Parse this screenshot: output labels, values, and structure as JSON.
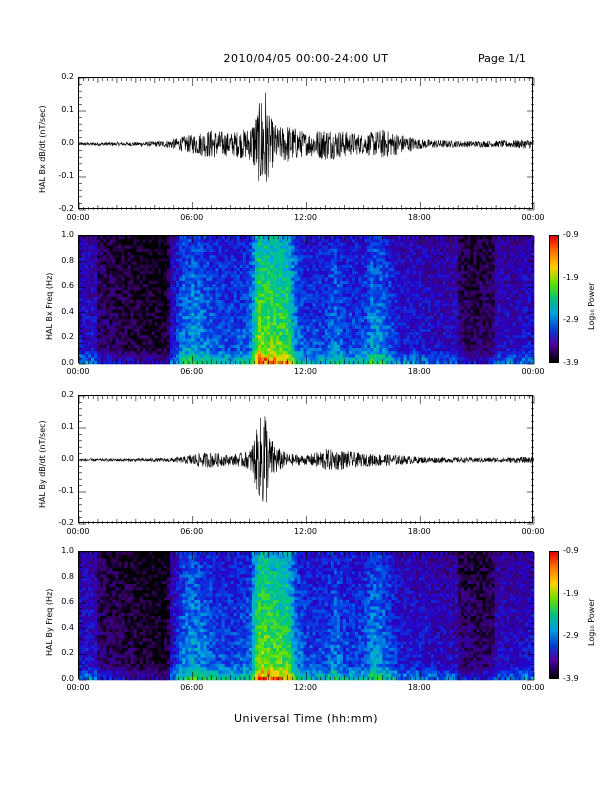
{
  "header": {
    "title": "2010/04/05  00:00-24:00 UT",
    "page": "Page 1/1"
  },
  "xlabel": "Universal Time (hh:mm)",
  "x_ticks": [
    "00:00",
    "06:00",
    "12:00",
    "18:00",
    "00:00"
  ],
  "colorbar": {
    "title": "Log₁₀ Power",
    "max": "-0.9",
    "t2": "-1.9",
    "t3": "-2.9",
    "min": "-3.9"
  },
  "chart_data": [
    {
      "type": "line",
      "ylabel": "HAL Bx dB/dt (nT/sec)",
      "yticks": [
        "0.2",
        "0.1",
        "0.0",
        "-0.1",
        "-0.2"
      ],
      "ylim": [
        -0.2,
        0.2
      ],
      "xlim_hours": [
        0,
        24
      ],
      "series": [
        {
          "x_hours": [
            0,
            3,
            4.5,
            6,
            7,
            8,
            9,
            9.5,
            9.8,
            10,
            10.5,
            11,
            12,
            13,
            14,
            15,
            16,
            18,
            20,
            22,
            24
          ],
          "amplitude": [
            0.005,
            0.006,
            0.01,
            0.03,
            0.045,
            0.035,
            0.05,
            0.12,
            0.2,
            0.09,
            0.05,
            0.06,
            0.035,
            0.05,
            0.04,
            0.03,
            0.045,
            0.015,
            0.01,
            0.01,
            0.015
          ]
        }
      ]
    },
    {
      "type": "heatmap",
      "ylabel": "HAL Bx Freq (Hz)",
      "yticks": [
        "1.0",
        "0.8",
        "0.6",
        "0.4",
        "0.2",
        "0.0"
      ],
      "ylim": [
        0,
        1.0
      ],
      "xlim_hours": [
        0,
        24
      ]
    },
    {
      "type": "line",
      "ylabel": "HAL By dB/dt (nT/sec)",
      "yticks": [
        "0.2",
        "0.1",
        "0.0",
        "-0.1",
        "-0.2"
      ],
      "ylim": [
        -0.2,
        0.2
      ],
      "xlim_hours": [
        0,
        24
      ],
      "series": [
        {
          "x_hours": [
            0,
            3,
            4.5,
            5.5,
            6,
            7,
            8,
            9,
            9.5,
            9.8,
            10,
            10.5,
            11,
            12,
            13,
            14,
            15,
            16,
            18,
            20,
            22,
            24
          ],
          "amplitude": [
            0.004,
            0.005,
            0.006,
            0.01,
            0.02,
            0.025,
            0.015,
            0.03,
            0.12,
            0.2,
            0.08,
            0.04,
            0.02,
            0.015,
            0.035,
            0.03,
            0.02,
            0.02,
            0.01,
            0.008,
            0.008,
            0.01
          ]
        }
      ]
    },
    {
      "type": "heatmap",
      "ylabel": "HAL By Freq (Hz)",
      "yticks": [
        "1.0",
        "0.8",
        "0.6",
        "0.4",
        "0.2",
        "0.0"
      ],
      "ylim": [
        0,
        1.0
      ],
      "xlim_hours": [
        0,
        24
      ]
    }
  ]
}
